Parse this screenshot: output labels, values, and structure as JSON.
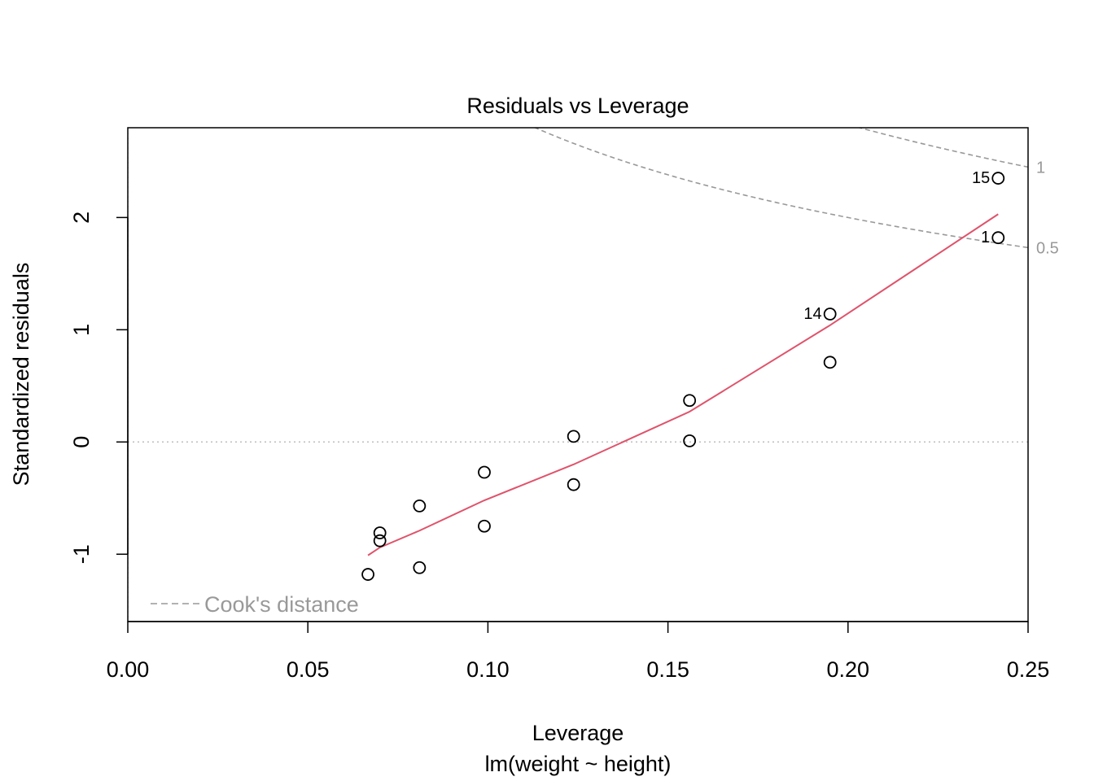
{
  "chart_data": {
    "type": "scatter",
    "title": "Residuals vs Leverage",
    "xlabel": "Leverage",
    "subtitle": "lm(weight ~ height)",
    "ylabel": "Standardized residuals",
    "xlim": [
      0,
      0.25
    ],
    "ylim": [
      -1.6,
      2.8
    ],
    "x_ticks": [
      0.0,
      0.05,
      0.1,
      0.15,
      0.2,
      0.25
    ],
    "x_tick_labels": [
      "0.00",
      "0.05",
      "0.10",
      "0.15",
      "0.20",
      "0.25"
    ],
    "y_ticks": [
      -1,
      0,
      1,
      2
    ],
    "y_tick_labels": [
      "-1",
      "0",
      "1",
      "2"
    ],
    "points": [
      {
        "x": 0.0667,
        "y": -1.18,
        "label": ""
      },
      {
        "x": 0.07,
        "y": -0.81,
        "label": ""
      },
      {
        "x": 0.07,
        "y": -0.88,
        "label": ""
      },
      {
        "x": 0.081,
        "y": -0.57,
        "label": ""
      },
      {
        "x": 0.081,
        "y": -1.12,
        "label": ""
      },
      {
        "x": 0.099,
        "y": -0.27,
        "label": ""
      },
      {
        "x": 0.099,
        "y": -0.75,
        "label": ""
      },
      {
        "x": 0.1238,
        "y": 0.05,
        "label": ""
      },
      {
        "x": 0.1238,
        "y": -0.38,
        "label": ""
      },
      {
        "x": 0.156,
        "y": 0.37,
        "label": ""
      },
      {
        "x": 0.156,
        "y": 0.01,
        "label": ""
      },
      {
        "x": 0.195,
        "y": 1.14,
        "label": "14"
      },
      {
        "x": 0.195,
        "y": 0.71,
        "label": ""
      },
      {
        "x": 0.2417,
        "y": 2.35,
        "label": "15"
      },
      {
        "x": 0.2417,
        "y": 1.82,
        "label": "1"
      }
    ],
    "smooth_line": {
      "color": "#DF536B",
      "x": [
        0.0667,
        0.07,
        0.081,
        0.099,
        0.1238,
        0.156,
        0.195,
        0.2417
      ],
      "y": [
        -1.01,
        -0.94,
        -0.79,
        -0.52,
        -0.2,
        0.27,
        1.04,
        2.03
      ]
    },
    "cook_levels": [
      {
        "level": 0.5,
        "label": "0.5"
      },
      {
        "level": 1,
        "label": "1"
      }
    ],
    "cook_n_params": 2,
    "legend": {
      "label": "Cook's distance",
      "position": "bottom-left"
    },
    "reference_lines": {
      "x": 0,
      "y": 0
    },
    "colors": {
      "points": "#000000",
      "smooth": "#DF536B",
      "cook": "#999999",
      "reference": "#BEBEBE"
    }
  }
}
